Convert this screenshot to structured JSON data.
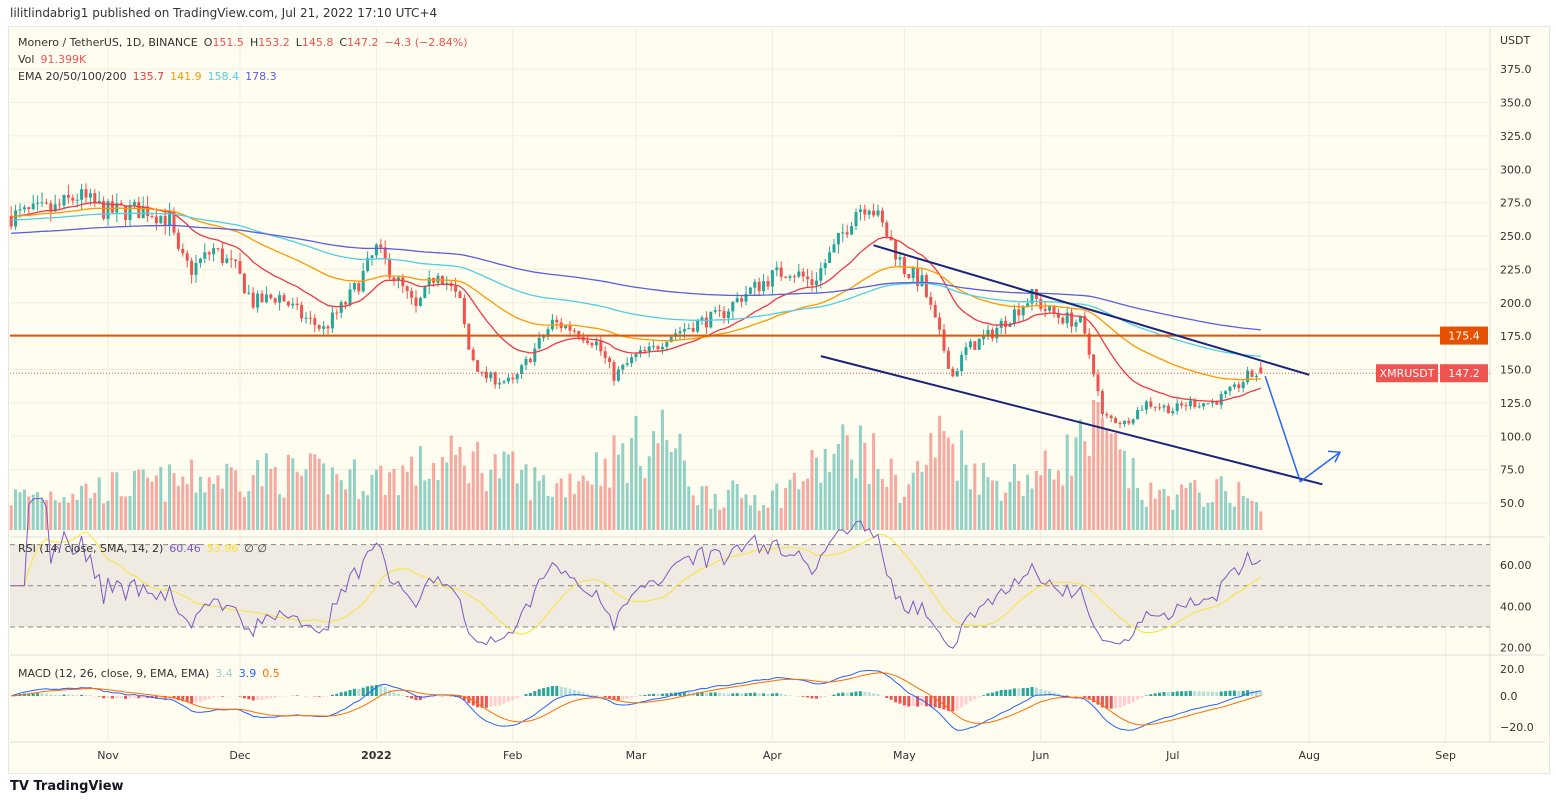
{
  "published": "lilitlindabrig1 published on TradingView.com, Jul 21, 2022 17:10 UTC+4",
  "legend": {
    "symbol": "Monero / TetherUS, 1D, BINANCE",
    "o_label": "O",
    "o": "151.5",
    "h_label": "H",
    "h": "153.2",
    "l_label": "L",
    "l": "145.8",
    "c_label": "C",
    "c": "147.2",
    "change": "−4.3 (−2.84%)",
    "vol_label": "Vol",
    "vol": "91.399K",
    "ema_label": "EMA 20/50/100/200",
    "ema20": "135.7",
    "ema50": "141.9",
    "ema100": "158.4",
    "ema200": "178.3",
    "rsi_label": "RSI (14, close, SMA, 14, 2)",
    "rsi": "60.46",
    "rsi_sma": "53.96",
    "rsi_extra": "∅ ∅",
    "macd_label": "MACD (12, 26, close, 9, EMA, EMA)",
    "macd_hist": "3.4",
    "macd": "3.9",
    "macd_signal": "0.5"
  },
  "footer": "TradingView",
  "colors": {
    "up": "#26a69a",
    "down": "#ef5350",
    "ema20": "#f23645",
    "ema50": "#ff9800",
    "ema100": "#4dd0e1",
    "ema200": "#5b5fe0",
    "level": "#e65100",
    "channel": "#1a237e",
    "arrow": "#2962ff",
    "rsi": "#7e57c2",
    "rsi_sma": "#fbe335",
    "macd": "#2962ff",
    "signal": "#ff6d00"
  },
  "chart_data": {
    "type": "candlestick",
    "price_unit": "USDT",
    "ylim": [
      40,
      390
    ],
    "price_ticks": [
      "375.0",
      "350.0",
      "325.0",
      "300.0",
      "275.0",
      "250.0",
      "225.0",
      "200.0",
      "175.0",
      "150.0",
      "125.0",
      "100.0",
      "75.0",
      "50.0"
    ],
    "x_ticks": [
      {
        "date": "2021-11-01",
        "label": "Nov"
      },
      {
        "date": "2021-12-01",
        "label": "Dec"
      },
      {
        "date": "2022-01-01",
        "label": "2022"
      },
      {
        "date": "2022-02-01",
        "label": "Feb"
      },
      {
        "date": "2022-03-01",
        "label": "Mar"
      },
      {
        "date": "2022-04-01",
        "label": "Apr"
      },
      {
        "date": "2022-05-01",
        "label": "May"
      },
      {
        "date": "2022-06-01",
        "label": "Jun"
      },
      {
        "date": "2022-07-01",
        "label": "Jul"
      },
      {
        "date": "2022-08-01",
        "label": "Aug"
      },
      {
        "date": "2022-09-01",
        "label": "Sep"
      }
    ],
    "close_keypoints": [
      [
        "2021-10-10",
        265
      ],
      [
        "2021-10-20",
        270
      ],
      [
        "2021-10-25",
        280
      ],
      [
        "2021-11-01",
        268
      ],
      [
        "2021-11-10",
        270
      ],
      [
        "2021-11-15",
        262
      ],
      [
        "2021-11-17",
        235
      ],
      [
        "2021-11-20",
        225
      ],
      [
        "2021-11-25",
        240
      ],
      [
        "2021-11-30",
        225
      ],
      [
        "2021-12-04",
        200
      ],
      [
        "2021-12-10",
        205
      ],
      [
        "2021-12-15",
        190
      ],
      [
        "2021-12-20",
        180
      ],
      [
        "2021-12-25",
        200
      ],
      [
        "2021-12-28",
        215
      ],
      [
        "2022-01-01",
        240
      ],
      [
        "2022-01-05",
        220
      ],
      [
        "2022-01-10",
        195
      ],
      [
        "2022-01-15",
        225
      ],
      [
        "2022-01-20",
        200
      ],
      [
        "2022-01-22",
        165
      ],
      [
        "2022-01-25",
        145
      ],
      [
        "2022-02-01",
        140
      ],
      [
        "2022-02-05",
        160
      ],
      [
        "2022-02-10",
        185
      ],
      [
        "2022-02-15",
        180
      ],
      [
        "2022-02-20",
        170
      ],
      [
        "2022-02-24",
        145
      ],
      [
        "2022-03-01",
        160
      ],
      [
        "2022-03-05",
        165
      ],
      [
        "2022-03-08",
        175
      ],
      [
        "2022-03-15",
        185
      ],
      [
        "2022-03-20",
        190
      ],
      [
        "2022-03-25",
        205
      ],
      [
        "2022-04-01",
        220
      ],
      [
        "2022-04-05",
        225
      ],
      [
        "2022-04-10",
        215
      ],
      [
        "2022-04-15",
        240
      ],
      [
        "2022-04-20",
        270
      ],
      [
        "2022-04-23",
        275
      ],
      [
        "2022-04-28",
        245
      ],
      [
        "2022-05-01",
        225
      ],
      [
        "2022-05-05",
        215
      ],
      [
        "2022-05-09",
        175
      ],
      [
        "2022-05-12",
        145
      ],
      [
        "2022-05-15",
        165
      ],
      [
        "2022-05-20",
        175
      ],
      [
        "2022-05-25",
        190
      ],
      [
        "2022-05-30",
        205
      ],
      [
        "2022-06-02",
        195
      ],
      [
        "2022-06-05",
        190
      ],
      [
        "2022-06-10",
        185
      ],
      [
        "2022-06-13",
        150
      ],
      [
        "2022-06-15",
        115
      ],
      [
        "2022-06-20",
        110
      ],
      [
        "2022-06-25",
        125
      ],
      [
        "2022-07-01",
        120
      ],
      [
        "2022-07-05",
        125
      ],
      [
        "2022-07-10",
        125
      ],
      [
        "2022-07-15",
        135
      ],
      [
        "2022-07-18",
        145
      ],
      [
        "2022-07-21",
        147.2
      ]
    ],
    "volume_keypoints_k": [
      [
        "2021-10-10",
        120
      ],
      [
        "2021-11-01",
        150
      ],
      [
        "2021-11-17",
        170
      ],
      [
        "2021-12-04",
        200
      ],
      [
        "2022-01-01",
        180
      ],
      [
        "2022-01-22",
        250
      ],
      [
        "2022-02-10",
        150
      ],
      [
        "2022-03-08",
        330
      ],
      [
        "2022-03-15",
        130
      ],
      [
        "2022-04-01",
        120
      ],
      [
        "2022-04-20",
        300
      ],
      [
        "2022-05-01",
        140
      ],
      [
        "2022-05-10",
        330
      ],
      [
        "2022-05-20",
        170
      ],
      [
        "2022-06-01",
        190
      ],
      [
        "2022-06-14",
        340
      ],
      [
        "2022-06-25",
        120
      ],
      [
        "2022-07-15",
        140
      ],
      [
        "2022-07-21",
        91.399
      ]
    ],
    "horizontal_level": {
      "price": 175.4,
      "label": "175.4"
    },
    "last_price": {
      "symbol": "XMRUSDT",
      "price": 147.2,
      "label": "147.2"
    },
    "channel": {
      "upper": [
        [
          "2022-04-24",
          243
        ],
        [
          "2022-08-01",
          146
        ]
      ],
      "lower": [
        [
          "2022-04-12",
          160
        ],
        [
          "2022-08-04",
          64
        ]
      ]
    },
    "projection_arrow": [
      [
        "2022-07-22",
        145
      ],
      [
        "2022-07-30",
        66
      ],
      [
        "2022-08-08",
        88
      ]
    ],
    "rsi": {
      "ylim": [
        15,
        75
      ],
      "ticks": [
        "60.00",
        "40.00",
        "20.00"
      ],
      "band": [
        30,
        70
      ]
    },
    "macd": {
      "ylim": [
        -30,
        25
      ],
      "ticks": [
        "20.0",
        "0.0",
        "−20.0"
      ]
    }
  }
}
